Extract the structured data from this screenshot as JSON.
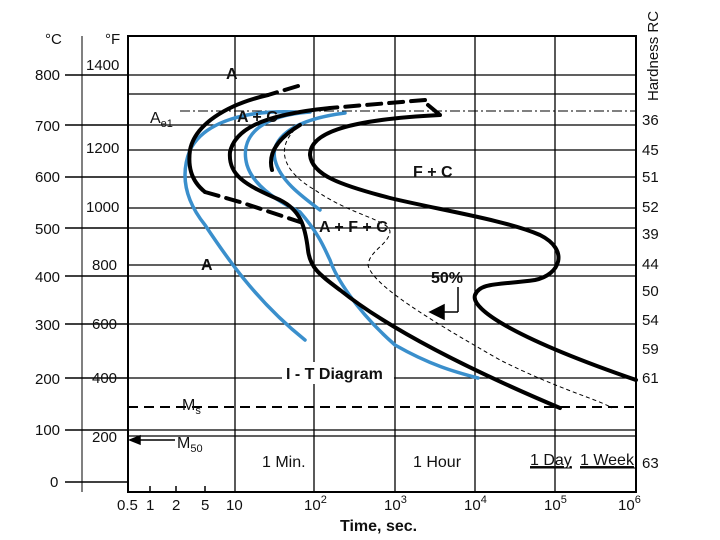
{
  "title": "I - T Diagram",
  "axes": {
    "celsius_unit": "°C",
    "fahrenheit_unit": "°F",
    "hardness_label": "Hardness RC",
    "x_label": "Time, sec.",
    "celsius_ticks": [
      "800",
      "700",
      "600",
      "500",
      "400",
      "300",
      "200",
      "100",
      "0"
    ],
    "fahrenheit_ticks": [
      "1400",
      "1200",
      "1000",
      "800",
      "600",
      "400",
      "200"
    ],
    "hardness_ticks": [
      "36",
      "45",
      "51",
      "52",
      "39",
      "44",
      "50",
      "54",
      "59",
      "61",
      "63"
    ],
    "time_ticks": [
      "0.5",
      "1",
      "2",
      "5",
      "10",
      "10",
      "2",
      "10",
      "3",
      "10",
      "4",
      "10",
      "5",
      "10",
      "6"
    ]
  },
  "time_markers": [
    "1 Min.",
    "1 Hour",
    "1 Day",
    "1 Week"
  ],
  "regions": {
    "austenite_top": "A",
    "ae1": "A",
    "ae1_sub": "e1",
    "a_plus_c": "A + C",
    "f_plus_c": "F + C",
    "a_f_c": "A + F + C",
    "austenite_low": "A",
    "fifty_percent": "50%",
    "ms": "M",
    "ms_sub": "s",
    "m50": "M",
    "m50_sub": "50"
  },
  "colors": {
    "curve_black": "#000000",
    "curve_blue": "#3a8fcc",
    "grid": "#000000"
  }
}
